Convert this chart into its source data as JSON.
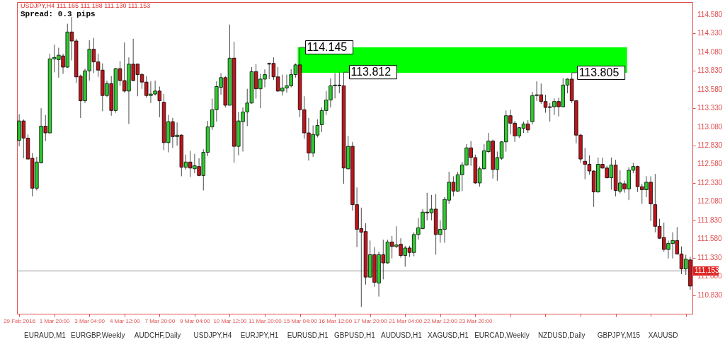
{
  "chart_data": {
    "type": "candlestick",
    "title": "USDJPY,H4  111.165 111.188 111.130 111.153",
    "subtitle": "Spread: 0.3 pips",
    "categories": [
      "29 Feb 2016",
      null,
      null,
      null,
      null,
      null,
      null,
      null,
      "1 Mar 20:00",
      null,
      null,
      null,
      null,
      null,
      null,
      null,
      "3 Mar 04:00",
      null,
      null,
      null,
      null,
      null,
      null,
      null,
      "4 Mar 12:00",
      null,
      null,
      null,
      null,
      null,
      null,
      null,
      "7 Mar 20:00",
      null,
      null,
      null,
      null,
      null,
      null,
      null,
      "9 Mar 04:00",
      null,
      null,
      null,
      null,
      null,
      null,
      null,
      "10 Mar 12:00",
      null,
      null,
      null,
      null,
      null,
      null,
      null,
      "11 Mar 20:00",
      null,
      null,
      null,
      null,
      null,
      null,
      null,
      "15 Mar 04:00",
      null,
      null,
      null,
      null,
      null,
      null,
      null,
      "16 Mar 12:00",
      null,
      null,
      null,
      null,
      null,
      null,
      null,
      "17 Mar 20:00",
      null,
      null,
      null,
      null,
      null,
      null,
      null,
      "21 Mar 04:00",
      null,
      null,
      null,
      null,
      null,
      null,
      null,
      "22 Mar 12:00",
      null,
      null,
      null,
      null,
      null,
      null,
      null,
      "23 Mar 20:00",
      null,
      null,
      null,
      null,
      null,
      null,
      null,
      null,
      null,
      null,
      null,
      null,
      null,
      null,
      null,
      null,
      null,
      null,
      null,
      null,
      null,
      null,
      null,
      null,
      null,
      null,
      null,
      null,
      null,
      null,
      null,
      null,
      null,
      null,
      null,
      null,
      null,
      null,
      null,
      null,
      null,
      null,
      null,
      null,
      null,
      null,
      null,
      null,
      null
    ],
    "ohlc": [
      [
        112.9,
        113.25,
        112.82,
        113.16
      ],
      [
        113.16,
        113.18,
        112.66,
        112.93
      ],
      [
        112.93,
        112.98,
        112.65,
        112.65
      ],
      [
        112.66,
        112.73,
        112.15,
        112.26
      ],
      [
        112.26,
        112.68,
        112.23,
        112.61
      ],
      [
        112.6,
        113.33,
        112.59,
        113.09
      ],
      [
        113.09,
        113.24,
        112.89,
        113.0
      ],
      [
        113.0,
        114.06,
        112.99,
        113.99
      ],
      [
        113.99,
        114.18,
        113.81,
        114.01
      ],
      [
        113.98,
        114.14,
        113.74,
        114.04
      ],
      [
        114.03,
        114.06,
        113.79,
        113.88
      ],
      [
        113.88,
        114.46,
        113.87,
        114.35
      ],
      [
        114.35,
        114.55,
        113.97,
        114.23
      ],
      [
        114.23,
        114.26,
        113.67,
        113.75
      ],
      [
        113.76,
        113.78,
        113.2,
        113.43
      ],
      [
        113.43,
        113.86,
        113.4,
        113.83
      ],
      [
        113.83,
        114.24,
        113.7,
        114.12
      ],
      [
        114.12,
        114.27,
        113.8,
        113.95
      ],
      [
        113.95,
        114.06,
        113.75,
        113.84
      ],
      [
        113.84,
        113.93,
        113.29,
        113.5
      ],
      [
        113.5,
        113.7,
        113.48,
        113.66
      ],
      [
        113.66,
        113.76,
        113.23,
        113.3
      ],
      [
        113.3,
        113.87,
        113.27,
        113.86
      ],
      [
        113.86,
        113.96,
        113.63,
        113.7
      ],
      [
        113.7,
        114.21,
        113.54,
        113.56
      ],
      [
        113.56,
        114.01,
        113.12,
        113.92
      ],
      [
        113.92,
        114.26,
        113.69,
        113.7
      ],
      [
        113.92,
        113.93,
        113.49,
        113.78
      ],
      [
        113.78,
        113.8,
        113.59,
        113.68
      ],
      [
        113.68,
        113.76,
        113.47,
        113.5
      ],
      [
        113.5,
        113.69,
        113.4,
        113.52
      ],
      [
        113.52,
        113.7,
        113.5,
        113.56
      ],
      [
        113.56,
        113.62,
        113.21,
        113.43
      ],
      [
        113.41,
        113.52,
        112.77,
        112.87
      ],
      [
        112.87,
        113.24,
        112.74,
        113.15
      ],
      [
        113.15,
        113.2,
        112.8,
        112.95
      ],
      [
        112.95,
        113.14,
        112.83,
        112.97
      ],
      [
        112.97,
        112.98,
        112.42,
        112.54
      ],
      [
        112.54,
        112.71,
        112.51,
        112.61
      ],
      [
        112.61,
        112.76,
        112.41,
        112.53
      ],
      [
        112.52,
        112.72,
        112.46,
        112.56
      ],
      [
        112.55,
        112.66,
        112.42,
        112.43
      ],
      [
        112.43,
        112.78,
        112.23,
        112.74
      ],
      [
        112.74,
        113.16,
        112.69,
        113.08
      ],
      [
        113.08,
        113.46,
        113.04,
        113.31
      ],
      [
        113.31,
        113.69,
        113.15,
        113.62
      ],
      [
        113.61,
        113.8,
        113.51,
        113.74
      ],
      [
        113.74,
        113.76,
        113.34,
        113.37
      ],
      [
        113.37,
        114.45,
        113.37,
        114.0
      ],
      [
        114.0,
        114.22,
        112.6,
        112.82
      ],
      [
        112.82,
        113.28,
        112.7,
        113.16
      ],
      [
        113.15,
        113.34,
        112.75,
        113.28
      ],
      [
        113.28,
        113.59,
        113.09,
        113.4
      ],
      [
        113.4,
        113.88,
        113.39,
        113.82
      ],
      [
        113.82,
        113.92,
        113.46,
        113.59
      ],
      [
        113.59,
        113.79,
        113.33,
        113.72
      ],
      [
        113.72,
        113.85,
        113.61,
        113.78
      ],
      [
        113.93,
        113.94,
        113.72,
        113.92
      ],
      [
        113.93,
        114.01,
        113.71,
        113.75
      ],
      [
        113.75,
        113.88,
        113.55,
        113.56
      ],
      [
        113.56,
        113.78,
        113.5,
        113.6
      ],
      [
        113.6,
        113.78,
        113.54,
        113.63
      ],
      [
        113.63,
        113.85,
        113.61,
        113.78
      ],
      [
        113.78,
        113.93,
        113.74,
        113.91
      ],
      [
        113.91,
        114.145,
        113.21,
        113.31
      ],
      [
        113.31,
        113.49,
        112.92,
        113.0
      ],
      [
        113.0,
        113.2,
        112.63,
        112.73
      ],
      [
        112.73,
        113.1,
        112.68,
        112.98
      ],
      [
        112.97,
        113.18,
        112.94,
        113.1
      ],
      [
        113.11,
        113.34,
        113.01,
        113.3
      ],
      [
        113.3,
        113.56,
        113.24,
        113.44
      ],
      [
        113.44,
        113.73,
        113.34,
        113.63
      ],
      [
        113.63,
        113.8,
        113.46,
        113.64
      ],
      [
        113.64,
        113.81,
        113.53,
        113.63
      ],
      [
        113.63,
        113.812,
        112.32,
        112.53
      ],
      [
        112.52,
        112.96,
        112.51,
        112.82
      ],
      [
        112.82,
        112.88,
        111.96,
        112.04
      ],
      [
        112.04,
        112.27,
        111.47,
        111.71
      ],
      [
        111.72,
        112.0,
        110.67,
        111.67
      ],
      [
        111.68,
        111.79,
        110.97,
        111.07
      ],
      [
        111.07,
        111.56,
        111.06,
        111.37
      ],
      [
        111.37,
        111.47,
        110.94,
        111.0
      ],
      [
        110.99,
        111.41,
        110.81,
        111.37
      ],
      [
        111.37,
        111.57,
        111.04,
        111.26
      ],
      [
        111.26,
        111.57,
        111.25,
        111.54
      ],
      [
        111.54,
        111.62,
        111.32,
        111.48
      ],
      [
        111.48,
        111.75,
        111.46,
        111.5
      ],
      [
        111.51,
        111.59,
        111.33,
        111.36
      ],
      [
        111.36,
        111.49,
        111.21,
        111.46
      ],
      [
        111.46,
        111.49,
        111.34,
        111.4
      ],
      [
        111.4,
        111.67,
        111.35,
        111.64
      ],
      [
        111.64,
        111.86,
        111.57,
        111.73
      ],
      [
        111.72,
        111.98,
        111.71,
        111.94
      ],
      [
        111.94,
        112.2,
        111.83,
        111.93
      ],
      [
        111.93,
        112.17,
        111.83,
        111.98
      ],
      [
        111.98,
        112.18,
        111.37,
        111.64
      ],
      [
        111.64,
        111.83,
        111.53,
        111.71
      ],
      [
        111.71,
        112.14,
        111.53,
        112.11
      ],
      [
        112.1,
        112.48,
        112.05,
        112.34
      ],
      [
        112.34,
        112.42,
        112.15,
        112.22
      ],
      [
        112.22,
        112.48,
        112.21,
        112.44
      ],
      [
        112.44,
        112.61,
        112.22,
        112.57
      ],
      [
        112.57,
        112.85,
        112.56,
        112.8
      ],
      [
        112.8,
        112.89,
        112.56,
        112.67
      ],
      [
        112.67,
        112.71,
        112.32,
        112.33
      ],
      [
        112.33,
        112.55,
        112.28,
        112.52
      ],
      [
        112.52,
        112.85,
        112.51,
        112.76
      ],
      [
        112.75,
        113.0,
        112.73,
        112.89
      ],
      [
        112.89,
        112.91,
        112.39,
        112.51
      ],
      [
        112.51,
        112.75,
        112.36,
        112.67
      ],
      [
        112.66,
        112.89,
        112.64,
        112.88
      ],
      [
        112.88,
        113.3,
        112.75,
        113.23
      ],
      [
        113.23,
        113.31,
        112.98,
        113.13
      ],
      [
        113.13,
        113.16,
        112.88,
        112.96
      ],
      [
        112.96,
        113.08,
        112.93,
        113.07
      ],
      [
        113.06,
        113.15,
        113.0,
        113.12
      ],
      [
        113.12,
        113.17,
        113.0,
        113.04
      ],
      [
        113.15,
        113.55,
        113.11,
        113.5
      ],
      [
        113.5,
        113.69,
        113.43,
        113.51
      ],
      [
        113.51,
        113.66,
        113.39,
        113.42
      ],
      [
        113.42,
        113.51,
        113.27,
        113.34
      ],
      [
        113.35,
        113.4,
        113.15,
        113.34
      ],
      [
        113.35,
        113.46,
        113.24,
        113.42
      ],
      [
        113.42,
        113.47,
        113.22,
        113.35
      ],
      [
        113.35,
        113.73,
        113.34,
        113.64
      ],
      [
        113.64,
        113.73,
        113.53,
        113.72
      ],
      [
        113.72,
        113.805,
        113.4,
        113.43
      ],
      [
        113.43,
        113.44,
        112.86,
        112.97
      ],
      [
        112.97,
        112.99,
        112.6,
        112.65
      ],
      [
        112.62,
        112.8,
        112.38,
        112.58
      ],
      [
        112.58,
        112.7,
        112.44,
        112.49
      ],
      [
        112.49,
        112.5,
        112.01,
        112.21
      ],
      [
        112.21,
        112.67,
        112.2,
        112.58
      ],
      [
        112.58,
        112.67,
        112.52,
        112.53
      ],
      [
        112.53,
        112.56,
        112.39,
        112.4
      ],
      [
        112.4,
        112.67,
        112.24,
        112.57
      ],
      [
        112.57,
        112.64,
        112.15,
        112.23
      ],
      [
        112.22,
        112.5,
        112.19,
        112.33
      ],
      [
        112.32,
        112.36,
        112.2,
        112.25
      ],
      [
        112.25,
        112.54,
        112.1,
        112.5
      ],
      [
        112.5,
        112.6,
        112.46,
        112.55
      ],
      [
        112.55,
        112.56,
        112.21,
        112.28
      ],
      [
        112.28,
        112.32,
        112.05,
        112.24
      ],
      [
        112.24,
        112.42,
        112.14,
        112.34
      ],
      [
        112.34,
        112.42,
        111.82,
        112.05
      ],
      [
        112.04,
        112.45,
        111.67,
        111.75
      ],
      [
        111.75,
        111.85,
        111.58,
        111.59
      ],
      [
        111.6,
        111.8,
        111.41,
        111.44
      ],
      [
        111.44,
        111.56,
        111.32,
        111.52
      ],
      [
        111.52,
        111.67,
        111.32,
        111.56
      ],
      [
        111.56,
        111.74,
        111.37,
        111.38
      ],
      [
        111.38,
        111.48,
        111.11,
        111.18
      ],
      [
        111.18,
        111.37,
        111.1,
        111.31
      ],
      [
        111.3,
        111.34,
        110.9,
        110.95
      ]
    ],
    "ylim": [
      110.58,
      114.75
    ],
    "yticks": [
      {
        "value": 110.83,
        "label": "110.830"
      },
      {
        "value": 111.08,
        "label": "111.080"
      },
      {
        "value": 111.33,
        "label": "111.330"
      },
      {
        "value": 111.58,
        "label": "111.580"
      },
      {
        "value": 111.83,
        "label": "111.830"
      },
      {
        "value": 112.08,
        "label": "112.080"
      },
      {
        "value": 112.33,
        "label": "112.330"
      },
      {
        "value": 112.58,
        "label": "112.580"
      },
      {
        "value": 112.83,
        "label": "112.830"
      },
      {
        "value": 113.08,
        "label": "113.080"
      },
      {
        "value": 113.33,
        "label": "113.330"
      },
      {
        "value": 113.58,
        "label": "113.580"
      },
      {
        "value": 113.83,
        "label": "113.830"
      },
      {
        "value": 114.08,
        "label": "114.080"
      },
      {
        "value": 114.33,
        "label": "114.330"
      },
      {
        "value": 114.58,
        "label": "114.580"
      }
    ],
    "ref_lines": [
      {
        "axis": "y",
        "value": 111.153,
        "label": "111.153",
        "color": "#909090"
      }
    ],
    "bands": [
      {
        "axis": "y",
        "from": 113.805,
        "to": 114.145,
        "color": "#00ff00"
      }
    ],
    "annotations": [
      {
        "text": "114.145",
        "x": "15 Mar 04:00",
        "y": 114.145
      },
      {
        "text": "113.812",
        "y": 113.812
      },
      {
        "text": "113.805",
        "y": 113.805
      },
      "EURAUD,M1",
      "EURGBP,Weekly",
      "AUDCHF,Daily",
      "USDJPY,H4",
      "EURJPY,H1",
      "EURUSD,H1",
      "GBPUSD,H1",
      "AUDUSD,H1",
      "XAGUSD,H1",
      "EURCAD,Weekly",
      "NZDUSD,Daily",
      "GBPJPY,M15",
      "XAUUSD"
    ],
    "grid": false
  }
}
